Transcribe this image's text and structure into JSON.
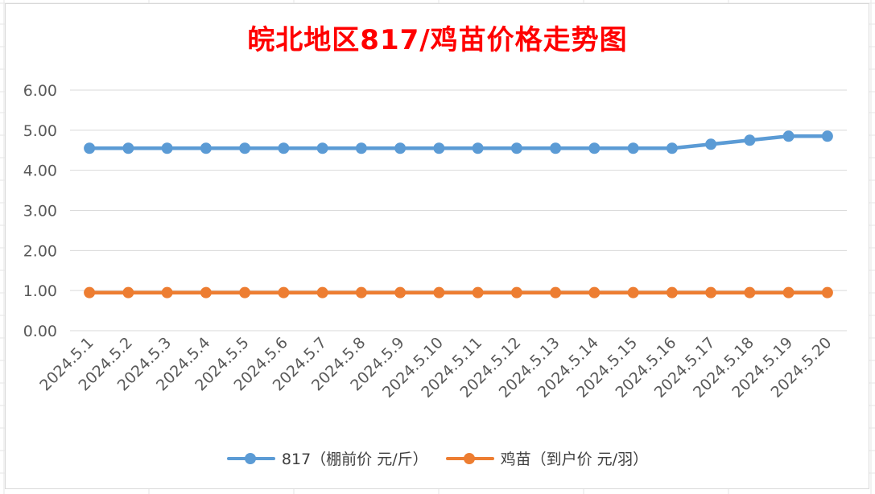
{
  "chart_data": {
    "type": "line",
    "title": "皖北地区817/鸡苗价格走势图",
    "categories": [
      "2024.5.1",
      "2024.5.2",
      "2024.5.3",
      "2024.5.4",
      "2024.5.5",
      "2024.5.6",
      "2024.5.7",
      "2024.5.8",
      "2024.5.9",
      "2024.5.10",
      "2024.5.11",
      "2024.5.12",
      "2024.5.13",
      "2024.5.14",
      "2024.5.15",
      "2024.5.16",
      "2024.5.17",
      "2024.5.18",
      "2024.5.19",
      "2024.5.20"
    ],
    "series": [
      {
        "name": "817（棚前价 元/斤）",
        "color": "#5b9bd5",
        "values": [
          4.55,
          4.55,
          4.55,
          4.55,
          4.55,
          4.55,
          4.55,
          4.55,
          4.55,
          4.55,
          4.55,
          4.55,
          4.55,
          4.55,
          4.55,
          4.55,
          4.65,
          4.75,
          4.85,
          4.85
        ]
      },
      {
        "name": "鸡苗（到户价 元/羽）",
        "color": "#ed7d31",
        "values": [
          0.95,
          0.95,
          0.95,
          0.95,
          0.95,
          0.95,
          0.95,
          0.95,
          0.95,
          0.95,
          0.95,
          0.95,
          0.95,
          0.95,
          0.95,
          0.95,
          0.95,
          0.95,
          0.95,
          0.95
        ]
      }
    ],
    "yticks": [
      "0.00",
      "1.00",
      "2.00",
      "3.00",
      "4.00",
      "5.00",
      "6.00"
    ],
    "ylim": [
      0,
      6
    ],
    "grid": true,
    "legend": "bottom"
  }
}
